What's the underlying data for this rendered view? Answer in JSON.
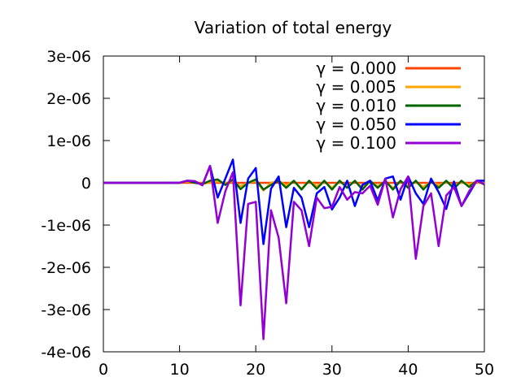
{
  "chart_data": {
    "type": "line",
    "title": "Variation of total energy",
    "xlabel": "",
    "ylabel": "",
    "xlim": [
      0,
      50
    ],
    "ylim": [
      -4e-06,
      3e-06
    ],
    "x_ticks": [
      0,
      10,
      20,
      30,
      40,
      50
    ],
    "x_tick_labels": [
      "0",
      "10",
      "20",
      "30",
      "40",
      "50"
    ],
    "y_ticks": [
      3e-06,
      2e-06,
      1e-06,
      0,
      -1e-06,
      -2e-06,
      -3e-06,
      -4e-06
    ],
    "y_tick_labels": [
      "3e-06",
      "2e-06",
      "1e-06",
      "0",
      "-1e-06",
      "-2e-06",
      "-3e-06",
      "-4e-06"
    ],
    "grid": false,
    "legend_position": "top-right",
    "x": [
      0,
      2,
      4,
      6,
      8,
      10,
      11,
      12,
      13,
      14,
      15,
      16,
      17,
      18,
      19,
      20,
      21,
      22,
      23,
      24,
      25,
      26,
      27,
      28,
      29,
      30,
      31,
      32,
      33,
      34,
      35,
      36,
      37,
      38,
      39,
      40,
      41,
      42,
      43,
      44,
      45,
      46,
      47,
      48,
      49,
      50
    ],
    "series": [
      {
        "name": "γ = 0.000",
        "color": "#ff4500",
        "values": [
          0,
          0,
          0,
          0,
          0,
          0,
          0,
          0,
          0,
          0,
          0,
          0,
          0,
          0,
          0,
          0,
          0,
          0,
          0,
          0,
          0,
          0,
          0,
          0,
          0,
          0,
          0,
          0,
          0,
          0,
          0,
          0,
          0,
          0,
          0,
          0,
          0,
          0,
          0,
          0,
          0,
          0,
          0,
          0,
          0,
          0
        ]
      },
      {
        "name": "γ = 0.005",
        "color": "#ffa500",
        "values": [
          0,
          0,
          0,
          0,
          0,
          0,
          3e-08,
          0,
          -2e-08,
          0,
          3e-08,
          0,
          3e-08,
          -8e-08,
          0,
          4e-08,
          -1.8e-07,
          0,
          5e-08,
          -6e-08,
          4e-08,
          -1.4e-07,
          4e-08,
          -8e-08,
          3e-08,
          -1.2e-07,
          3e-08,
          -8e-08,
          4e-08,
          -1.2e-07,
          3e-08,
          -8e-08,
          3e-08,
          -1.2e-07,
          3e-08,
          -6e-08,
          2e-08,
          -1e-07,
          3e-08,
          -6e-08,
          2e-08,
          -8e-08,
          2e-08,
          -4e-08,
          2e-08,
          -2e-08
        ]
      },
      {
        "name": "γ = 0.010",
        "color": "#006400",
        "values": [
          0,
          0,
          0,
          0,
          0,
          0,
          5e-08,
          0,
          -3e-08,
          5e-08,
          8e-08,
          -5e-08,
          8e-08,
          -1.5e-07,
          0,
          8e-08,
          -1.6e-07,
          -5e-08,
          5e-08,
          -1.2e-07,
          5e-08,
          -1.6e-07,
          5e-08,
          -1.4e-07,
          5e-08,
          -1.6e-07,
          5e-08,
          -1.2e-07,
          5e-08,
          -1.6e-07,
          5e-08,
          -1.2e-07,
          5e-08,
          -1.6e-07,
          5e-08,
          -1.2e-07,
          5e-08,
          -1.6e-07,
          3e-08,
          -1.2e-07,
          5e-08,
          -1.4e-07,
          5e-08,
          -1e-07,
          5e-08,
          -4e-08
        ]
      },
      {
        "name": "γ = 0.050",
        "color": "#0000ff",
        "values": [
          0,
          0,
          0,
          0,
          0,
          0,
          5e-08,
          3e-08,
          -5e-08,
          4e-07,
          -3.5e-07,
          1e-07,
          5.5e-07,
          -9.5e-07,
          1e-07,
          3.5e-07,
          -1.45e-06,
          -1.4e-07,
          1.5e-07,
          -1.05e-06,
          -1.2e-07,
          -3.5e-07,
          -1.05e-06,
          -2.5e-07,
          -1e-07,
          -6.3e-07,
          -3.5e-07,
          5e-08,
          -5.5e-07,
          -5e-08,
          5e-08,
          -4.2e-07,
          1e-07,
          1.5e-07,
          -4e-07,
          1.5e-07,
          -2.5e-07,
          -5e-07,
          1e-07,
          -2.2e-07,
          -6.2e-07,
          3e-08,
          -5.5e-07,
          -2.5e-07,
          5e-08,
          5e-08
        ]
      },
      {
        "name": "γ = 0.100",
        "color": "#9400d3",
        "values": [
          0,
          0,
          0,
          0,
          0,
          0,
          5e-08,
          4e-08,
          -6e-08,
          4e-07,
          -9.5e-07,
          -2e-07,
          2.5e-07,
          -2.9e-06,
          -5e-07,
          -4.5e-07,
          -3.7e-06,
          -6.5e-07,
          -1.3e-06,
          -2.85e-06,
          -4.5e-07,
          -6.5e-07,
          -1.5e-06,
          -3.5e-07,
          -6e-07,
          -5.7e-07,
          -1e-07,
          -4e-07,
          -2.2e-07,
          -2.5e-07,
          -7e-08,
          -5.2e-07,
          1e-07,
          -8.2e-07,
          -1.5e-07,
          1.5e-07,
          -1.8e-06,
          -5.5e-07,
          -2.5e-07,
          -1.5e-06,
          -3e-07,
          -1e-07,
          -5.5e-07,
          -2e-07,
          5e-08,
          -3e-08
        ]
      }
    ]
  }
}
